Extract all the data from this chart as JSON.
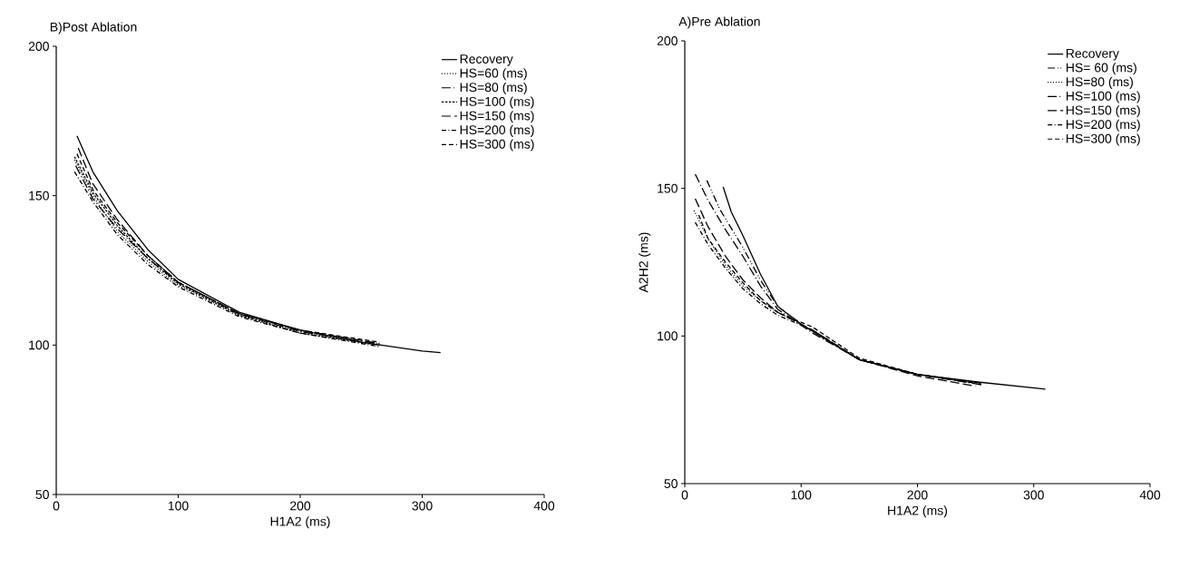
{
  "chart_data": [
    {
      "type": "line",
      "title": "B)Post Ablation",
      "xlabel": "H1A2 (ms)",
      "xlim": [
        0,
        400
      ],
      "xticks": [
        0,
        100,
        200,
        300,
        400
      ],
      "ylim": [
        50,
        200
      ],
      "yticks": [
        50,
        100,
        150,
        200
      ],
      "legend": "top right",
      "grid": false,
      "series": [
        {
          "name": "Recovery",
          "color": "#000000",
          "line_style": "solid",
          "x": [
            17,
            30,
            50,
            75,
            100,
            150,
            200,
            250,
            300,
            315
          ],
          "values": [
            170,
            158,
            145,
            132,
            122,
            111,
            105,
            101,
            98,
            97.5
          ]
        },
        {
          "name": "HS=60 (ms)",
          "color": "#000000",
          "line_style": "dotted",
          "x": [
            15,
            30,
            50,
            75,
            100,
            150,
            200,
            265
          ],
          "values": [
            162,
            150,
            138,
            128,
            120,
            110,
            104.5,
            100
          ]
        },
        {
          "name": "HS=80 (ms)",
          "color": "#000000",
          "line_style": "longdashdot",
          "x": [
            16,
            30,
            50,
            75,
            100,
            150,
            200,
            265
          ],
          "values": [
            160,
            149,
            139,
            129,
            121,
            110.5,
            104.5,
            100.5
          ]
        },
        {
          "name": "HS=100 (ms)",
          "color": "#000000",
          "line_style": "shortdash",
          "x": [
            15,
            30,
            50,
            75,
            100,
            150,
            200,
            265
          ],
          "values": [
            163,
            151,
            140,
            129,
            120.5,
            110,
            104,
            100
          ]
        },
        {
          "name": "HS=150 (ms)",
          "color": "#000000",
          "line_style": "longdash",
          "x": [
            18,
            30,
            50,
            75,
            100,
            150,
            200,
            265
          ],
          "values": [
            166,
            154,
            142,
            130,
            121,
            110.5,
            105,
            100.5
          ]
        },
        {
          "name": "HS=200 (ms)",
          "color": "#000000",
          "line_style": "dashdot",
          "x": [
            15,
            30,
            50,
            75,
            100,
            150,
            200,
            265
          ],
          "values": [
            158,
            148,
            137,
            127,
            119.5,
            109.5,
            104,
            99.5
          ]
        },
        {
          "name": "HS=300 (ms)",
          "color": "#000000",
          "line_style": "dashed",
          "x": [
            17,
            30,
            50,
            75,
            100,
            150,
            200,
            265
          ],
          "values": [
            164,
            152,
            141,
            130,
            121,
            110.5,
            105,
            101
          ]
        }
      ]
    },
    {
      "type": "line",
      "title": "A)Pre Ablation",
      "xlabel": "H1A2 (ms)",
      "ylabel": "A2H2 (ms)",
      "xlim": [
        0,
        400
      ],
      "xticks": [
        0,
        100,
        200,
        300,
        400
      ],
      "ylim": [
        50,
        200
      ],
      "yticks": [
        50,
        100,
        150,
        200
      ],
      "legend": "top right",
      "grid": false,
      "series": [
        {
          "name": "Recovery",
          "color": "#000000",
          "line_style": "solid",
          "x": [
            33,
            40,
            50,
            65,
            80,
            100,
            150,
            200,
            250,
            310
          ],
          "values": [
            150.5,
            142,
            134,
            121,
            110,
            104,
            92,
            87,
            84.5,
            82
          ]
        },
        {
          "name": "HS= 60 (ms)",
          "color": "#000000",
          "line_style": "dashdotdot",
          "x": [
            19,
            30,
            50,
            65,
            80,
            100,
            150,
            200,
            255
          ],
          "values": [
            152.7,
            143,
            130,
            119,
            110,
            104,
            92,
            87,
            84
          ]
        },
        {
          "name": "HS=80 (ms)",
          "color": "#000000",
          "line_style": "dotted",
          "x": [
            8,
            20,
            35,
            50,
            65,
            80,
            100,
            150,
            200,
            250
          ],
          "values": [
            142.5,
            133,
            124,
            117,
            112,
            108,
            104,
            92,
            87,
            84
          ]
        },
        {
          "name": "HS=100 (ms)",
          "color": "#000000",
          "line_style": "longdashdot",
          "x": [
            9,
            20,
            35,
            50,
            65,
            80,
            110,
            150,
            200,
            255
          ],
          "values": [
            154.8,
            146,
            136,
            127,
            117,
            109,
            101,
            92,
            87,
            83.5
          ]
        },
        {
          "name": "HS=150 (ms)",
          "color": "#000000",
          "line_style": "longdash",
          "x": [
            9,
            20,
            35,
            50,
            65,
            80,
            110,
            150,
            200,
            250
          ],
          "values": [
            146.5,
            137,
            127,
            119,
            113,
            108,
            102,
            92,
            86.5,
            83
          ]
        },
        {
          "name": "HS=200 (ms)",
          "color": "#000000",
          "line_style": "dashdot",
          "x": [
            9,
            20,
            35,
            50,
            65,
            80,
            110,
            150,
            200,
            250
          ],
          "values": [
            138.5,
            131,
            123,
            116,
            111,
            107,
            102,
            92,
            87,
            84
          ]
        },
        {
          "name": "HS=300 (ms)",
          "color": "#000000",
          "line_style": "dashed",
          "x": [
            12,
            20,
            35,
            50,
            65,
            80,
            110,
            150,
            200,
            250
          ],
          "values": [
            141,
            133,
            125,
            118,
            112,
            108,
            103,
            92.5,
            87,
            84
          ]
        }
      ]
    }
  ]
}
